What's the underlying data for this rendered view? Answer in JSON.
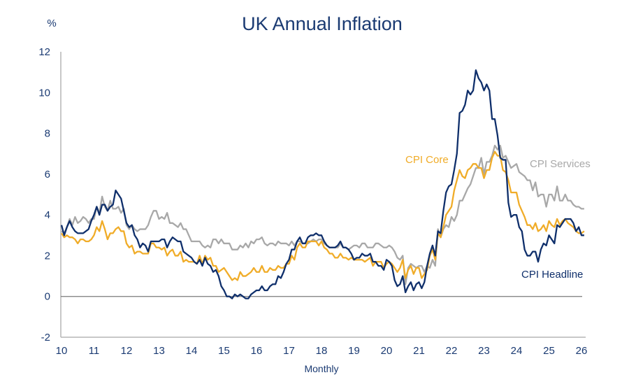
{
  "chart_data": {
    "type": "line",
    "title": "UK Annual Inflation",
    "ylabel": "%",
    "xlabel": "Monthly",
    "ylim": [
      -2,
      12
    ],
    "yticks": [
      -2,
      0,
      2,
      4,
      6,
      8,
      10,
      12
    ],
    "xlim_years": [
      2010,
      2026
    ],
    "xticks": [
      "10",
      "11",
      "12",
      "13",
      "14",
      "15",
      "16",
      "17",
      "18",
      "19",
      "20",
      "21",
      "22",
      "23",
      "24",
      "25",
      "26"
    ],
    "x_start": "2010-01",
    "frequency": "monthly",
    "zero_line": true,
    "grid": false,
    "series": [
      {
        "name": "CPI Headline",
        "label": "CPI Headline",
        "color": "#0f2f6b",
        "values": [
          3.5,
          3.0,
          3.4,
          3.7,
          3.4,
          3.2,
          3.1,
          3.1,
          3.1,
          3.2,
          3.3,
          3.7,
          4.0,
          4.4,
          4.0,
          4.5,
          4.5,
          4.2,
          4.4,
          4.5,
          5.2,
          5.0,
          4.8,
          4.2,
          3.6,
          3.4,
          3.5,
          3.0,
          2.8,
          2.4,
          2.6,
          2.5,
          2.2,
          2.7,
          2.7,
          2.7,
          2.7,
          2.8,
          2.8,
          2.4,
          2.7,
          2.9,
          2.8,
          2.7,
          2.7,
          2.2,
          2.1,
          2.0,
          1.9,
          1.7,
          1.6,
          1.8,
          1.5,
          1.9,
          1.6,
          1.5,
          1.2,
          1.3,
          1.0,
          0.5,
          0.3,
          0.0,
          0.0,
          -0.1,
          0.1,
          0.0,
          0.1,
          0.0,
          -0.1,
          -0.1,
          0.1,
          0.2,
          0.3,
          0.3,
          0.5,
          0.3,
          0.3,
          0.5,
          0.6,
          0.6,
          1.0,
          0.9,
          1.2,
          1.6,
          1.8,
          2.3,
          2.3,
          2.7,
          2.9,
          2.6,
          2.6,
          2.9,
          3.0,
          3.0,
          3.1,
          3.0,
          3.0,
          2.7,
          2.5,
          2.4,
          2.4,
          2.4,
          2.5,
          2.7,
          2.4,
          2.4,
          2.3,
          2.1,
          1.8,
          1.9,
          1.9,
          2.1,
          2.0,
          2.0,
          2.1,
          1.7,
          1.7,
          1.5,
          1.5,
          1.3,
          1.8,
          1.7,
          1.5,
          0.8,
          0.5,
          0.6,
          1.0,
          0.2,
          0.5,
          0.7,
          0.3,
          0.6,
          0.7,
          0.4,
          0.7,
          1.5,
          2.1,
          2.5,
          2.0,
          3.2,
          3.1,
          4.2,
          5.1,
          5.4,
          5.5,
          6.2,
          7.0,
          9.0,
          9.1,
          9.4,
          10.1,
          9.9,
          10.1,
          11.1,
          10.7,
          10.5,
          10.1,
          10.4,
          10.1,
          8.7,
          8.7,
          7.9,
          6.8,
          6.7,
          6.7,
          4.6,
          3.9,
          4.0,
          4.0,
          3.4,
          3.2,
          2.3,
          2.0,
          2.0,
          2.2,
          2.2,
          1.7,
          2.3,
          2.6,
          2.5,
          3.0,
          2.8,
          2.6,
          3.5,
          3.4,
          3.6,
          3.8,
          3.8,
          3.8,
          3.6,
          3.2,
          3.4,
          3.0,
          3.0
        ]
      },
      {
        "name": "CPI Core",
        "label": "CPI Core",
        "color": "#f0ac28",
        "values": [
          3.1,
          2.9,
          3.0,
          2.9,
          2.9,
          2.8,
          2.6,
          2.8,
          2.8,
          2.7,
          2.7,
          2.8,
          3.0,
          3.4,
          3.2,
          3.7,
          3.3,
          2.8,
          3.1,
          3.1,
          3.3,
          3.4,
          3.2,
          3.2,
          2.6,
          2.4,
          2.5,
          2.1,
          2.2,
          2.2,
          2.1,
          2.1,
          2.1,
          2.6,
          2.6,
          2.4,
          2.4,
          2.3,
          2.4,
          2.0,
          2.2,
          2.3,
          2.0,
          2.0,
          2.2,
          1.7,
          1.8,
          1.7,
          1.7,
          1.7,
          1.6,
          2.0,
          1.6,
          2.0,
          1.8,
          1.9,
          1.5,
          1.5,
          1.2,
          1.3,
          1.4,
          1.2,
          1.0,
          0.8,
          0.9,
          0.8,
          1.2,
          1.0,
          1.0,
          1.1,
          1.2,
          1.4,
          1.2,
          1.2,
          1.5,
          1.2,
          1.2,
          1.4,
          1.3,
          1.3,
          1.5,
          1.4,
          1.4,
          1.6,
          1.6,
          2.0,
          1.8,
          2.4,
          2.6,
          2.4,
          2.4,
          2.7,
          2.7,
          2.7,
          2.7,
          2.5,
          2.7,
          2.4,
          2.3,
          2.1,
          2.1,
          1.9,
          1.9,
          2.1,
          1.9,
          1.9,
          1.8,
          1.9,
          1.8,
          1.8,
          1.8,
          1.8,
          1.7,
          1.8,
          1.9,
          1.5,
          1.7,
          1.7,
          1.7,
          1.4,
          1.6,
          1.7,
          1.6,
          1.4,
          1.2,
          1.4,
          1.8,
          0.9,
          1.3,
          1.5,
          1.1,
          1.4,
          1.4,
          0.9,
          1.1,
          1.3,
          2.0,
          2.3,
          1.8,
          3.1,
          2.9,
          3.4,
          4.0,
          4.2,
          4.4,
          5.2,
          5.7,
          6.2,
          5.9,
          5.8,
          6.2,
          6.3,
          6.5,
          6.5,
          6.3,
          6.3,
          5.8,
          6.2,
          6.2,
          6.8,
          7.1,
          6.9,
          6.9,
          6.2,
          6.1,
          5.7,
          5.1,
          5.1,
          5.1,
          4.5,
          4.2,
          3.9,
          3.5,
          3.5,
          3.3,
          3.6,
          3.2,
          3.3,
          3.5,
          3.2,
          3.7,
          3.5,
          3.4,
          3.8,
          3.5,
          3.7,
          3.8,
          3.6,
          3.5,
          3.4,
          3.2,
          3.1,
          3.1,
          3.2
        ]
      },
      {
        "name": "CPI Services",
        "label": "CPI Services",
        "color": "#a8a8a8",
        "values": [
          3.2,
          3.1,
          3.4,
          3.8,
          3.5,
          3.9,
          3.6,
          3.7,
          3.9,
          3.8,
          3.6,
          3.8,
          3.8,
          4.4,
          4.1,
          4.9,
          4.4,
          4.2,
          4.7,
          4.3,
          4.3,
          4.4,
          4.1,
          4.3,
          3.5,
          3.3,
          3.5,
          3.3,
          3.2,
          3.3,
          3.3,
          3.3,
          3.5,
          3.9,
          4.2,
          4.2,
          3.8,
          3.9,
          3.8,
          4.1,
          3.6,
          3.6,
          3.5,
          3.4,
          3.6,
          3.3,
          3.3,
          3.0,
          2.7,
          2.7,
          2.7,
          2.7,
          2.5,
          2.4,
          2.5,
          2.4,
          2.8,
          2.8,
          2.6,
          2.8,
          2.6,
          2.6,
          2.6,
          2.3,
          2.3,
          2.3,
          2.5,
          2.4,
          2.6,
          2.4,
          2.7,
          2.6,
          2.8,
          2.8,
          2.9,
          2.6,
          2.5,
          2.6,
          2.6,
          2.5,
          2.7,
          2.6,
          2.6,
          2.6,
          2.5,
          2.7,
          2.5,
          2.7,
          2.7,
          2.6,
          2.6,
          2.6,
          2.7,
          2.8,
          2.7,
          2.8,
          2.8,
          2.6,
          2.5,
          2.4,
          2.4,
          2.4,
          2.4,
          2.6,
          2.4,
          2.4,
          2.3,
          2.4,
          2.5,
          2.5,
          2.4,
          2.6,
          2.6,
          2.4,
          2.4,
          2.4,
          2.6,
          2.6,
          2.5,
          2.4,
          2.4,
          2.5,
          2.4,
          2.2,
          1.9,
          1.8,
          2.0,
          0.6,
          1.4,
          1.6,
          1.5,
          1.4,
          1.5,
          1.5,
          1.2,
          1.5,
          1.4,
          1.8,
          1.5,
          3.3,
          2.9,
          3.3,
          3.5,
          3.4,
          3.9,
          3.7,
          4.0,
          4.7,
          4.7,
          5.0,
          5.3,
          5.5,
          5.9,
          6.3,
          6.3,
          6.8,
          6.0,
          6.6,
          6.6,
          6.9,
          7.4,
          7.2,
          7.4,
          6.8,
          6.9,
          6.6,
          6.3,
          6.4,
          6.5,
          6.1,
          6.0,
          5.9,
          5.7,
          5.7,
          5.2,
          5.6,
          4.9,
          5.0,
          5.0,
          4.4,
          5.0,
          5.0,
          4.7,
          5.4,
          4.7,
          4.7,
          5.0,
          4.7,
          4.7,
          4.5,
          4.4,
          4.4,
          4.3,
          4.3
        ]
      }
    ],
    "annotations": [
      {
        "series": "CPI Core",
        "text": "CPI Core"
      },
      {
        "series": "CPI Services",
        "text": "CPI Services"
      },
      {
        "series": "CPI Headline",
        "text": "CPI Headline"
      }
    ],
    "legend": "none (inline series labels)"
  },
  "colors": {
    "text": "#1a3a72",
    "axis": "#b5b5b5",
    "zero_line": "#7a7a7a"
  }
}
